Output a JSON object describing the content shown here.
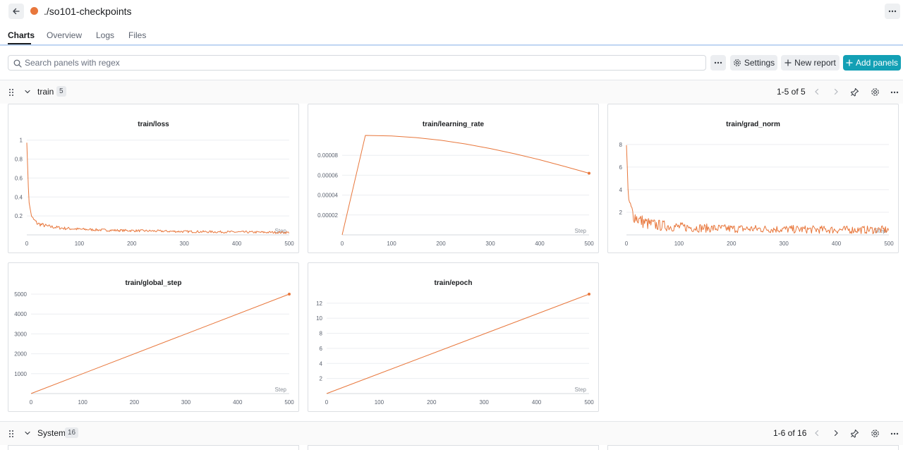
{
  "header": {
    "run_title": "./so101-checkpoints",
    "run_color": "#e8773c"
  },
  "tabs": [
    {
      "label": "Charts"
    },
    {
      "label": "Overview"
    },
    {
      "label": "Logs"
    },
    {
      "label": "Files"
    }
  ],
  "toolbar": {
    "search_placeholder": "Search panels with regex",
    "settings_label": "Settings",
    "new_report_label": "New report",
    "add_panels_label": "Add panels"
  },
  "sections": [
    {
      "name": "train",
      "count": "5",
      "pagination": "1-5 of 5"
    },
    {
      "name": "System",
      "count": "16",
      "pagination": "1-6 of 16"
    }
  ],
  "colors": {
    "series": "#e8773c",
    "accent": "#13a0b5"
  },
  "chart_data": [
    {
      "type": "line",
      "title": "train/loss",
      "xlabel": "Step",
      "xlim": [
        0,
        500
      ],
      "ylim": [
        0,
        1.05
      ],
      "x_ticks": [
        "0",
        "100",
        "200",
        "300",
        "400",
        "500"
      ],
      "y_ticks": [
        {
          "value": 0.2,
          "label": "0.2"
        },
        {
          "value": 0.4,
          "label": "0.4"
        },
        {
          "value": 0.6,
          "label": "0.6"
        },
        {
          "value": 0.8,
          "label": "0.8"
        },
        {
          "value": 1,
          "label": "1"
        }
      ],
      "series": [
        {
          "x": [
            0,
            2,
            5,
            10,
            20,
            40,
            70,
            100,
            150,
            200,
            300,
            400,
            500
          ],
          "y": [
            1.0,
            0.62,
            0.3,
            0.18,
            0.12,
            0.09,
            0.07,
            0.06,
            0.05,
            0.045,
            0.035,
            0.03,
            0.025
          ]
        }
      ],
      "noise": 0.012,
      "end_marker": false
    },
    {
      "type": "line",
      "title": "train/learning_rate",
      "xlabel": "Step",
      "xlim": [
        0,
        500
      ],
      "ylim": [
        0,
        0.0001
      ],
      "x_ticks": [
        "0",
        "100",
        "200",
        "300",
        "400",
        "500"
      ],
      "y_ticks": [
        {
          "value": 2e-05,
          "label": "0.00002"
        },
        {
          "value": 4e-05,
          "label": "0.00004"
        },
        {
          "value": 6e-05,
          "label": "0.00006"
        },
        {
          "value": 8e-05,
          "label": "0.00008"
        }
      ],
      "series": [
        {
          "x": [
            0,
            47,
            100,
            150,
            200,
            250,
            300,
            350,
            400,
            450,
            500
          ],
          "y": [
            0,
            0.0001,
            9.95e-05,
            9.78e-05,
            9.51e-05,
            9.14e-05,
            8.68e-05,
            8.15e-05,
            7.55e-05,
            6.89e-05,
            6.2e-05
          ]
        }
      ],
      "noise": 0,
      "end_marker": true
    },
    {
      "type": "line",
      "title": "train/grad_norm",
      "xlabel": "Step",
      "xlim": [
        0,
        500
      ],
      "ylim": [
        0,
        8.8
      ],
      "x_ticks": [
        "0",
        "100",
        "200",
        "300",
        "400",
        "500"
      ],
      "y_ticks": [
        {
          "value": 2,
          "label": "2"
        },
        {
          "value": 4,
          "label": "4"
        },
        {
          "value": 6,
          "label": "6"
        },
        {
          "value": 8,
          "label": "8"
        }
      ],
      "series": [
        {
          "x": [
            0,
            3,
            8,
            15,
            25,
            40,
            60,
            100,
            150,
            200,
            300,
            400,
            500
          ],
          "y": [
            8.2,
            3.4,
            2.3,
            1.7,
            1.3,
            1.0,
            0.85,
            0.7,
            0.6,
            0.55,
            0.5,
            0.45,
            0.45
          ]
        }
      ],
      "noise": 0.35,
      "end_marker": false
    },
    {
      "type": "line",
      "title": "train/global_step",
      "xlabel": "Step",
      "xlim": [
        0,
        500
      ],
      "ylim": [
        0,
        5000
      ],
      "x_ticks": [
        "0",
        "100",
        "200",
        "300",
        "400",
        "500"
      ],
      "y_ticks": [
        {
          "value": 1000,
          "label": "1000"
        },
        {
          "value": 2000,
          "label": "2000"
        },
        {
          "value": 3000,
          "label": "3000"
        },
        {
          "value": 4000,
          "label": "4000"
        },
        {
          "value": 5000,
          "label": "5000"
        }
      ],
      "series": [
        {
          "x": [
            0,
            500
          ],
          "y": [
            0,
            5000
          ]
        }
      ],
      "noise": 0,
      "end_marker": true
    },
    {
      "type": "line",
      "title": "train/epoch",
      "xlabel": "Step",
      "xlim": [
        0,
        500
      ],
      "ylim": [
        0,
        13.2
      ],
      "x_ticks": [
        "0",
        "100",
        "200",
        "300",
        "400",
        "500"
      ],
      "y_ticks": [
        {
          "value": 2,
          "label": "2"
        },
        {
          "value": 4,
          "label": "4"
        },
        {
          "value": 6,
          "label": "6"
        },
        {
          "value": 8,
          "label": "8"
        },
        {
          "value": 10,
          "label": "10"
        },
        {
          "value": 12,
          "label": "12"
        }
      ],
      "series": [
        {
          "x": [
            0,
            500
          ],
          "y": [
            0,
            13.2
          ]
        }
      ],
      "noise": 0,
      "end_marker": true
    }
  ]
}
